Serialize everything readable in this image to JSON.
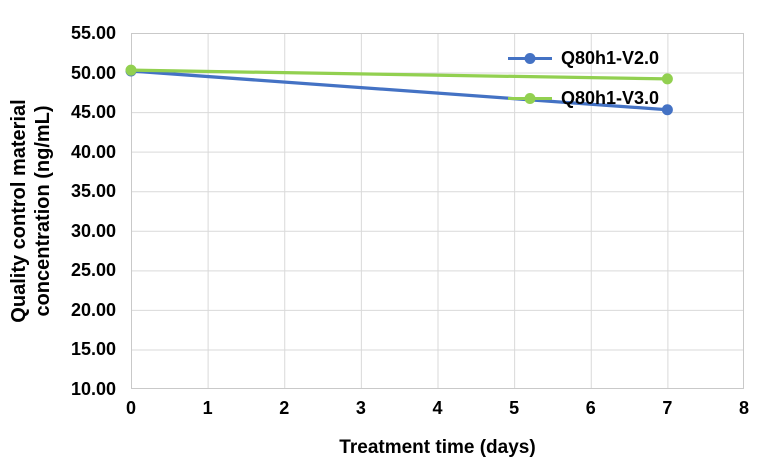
{
  "chart_data": {
    "type": "line",
    "title": "",
    "xlabel": "Treatment time (days)",
    "ylabel": "Quality control material concentration (ng/mL)",
    "ylabel_lines": [
      "Quality control material",
      "concentration (ng/mL)"
    ],
    "xlim": [
      0,
      8
    ],
    "ylim": [
      10,
      55
    ],
    "x_ticks": [
      0,
      1,
      2,
      3,
      4,
      5,
      6,
      7,
      8
    ],
    "y_ticks": [
      55,
      50,
      45,
      40,
      35,
      30,
      25,
      20,
      15,
      10
    ],
    "y_tick_labels": [
      "55.00",
      "50.00",
      "45.00",
      "40.00",
      "35.00",
      "30.00",
      "25.00",
      "20.00",
      "15.00",
      "10.00"
    ],
    "grid": true,
    "legend_position": "inside-top-right",
    "series": [
      {
        "name": "Q80h1-V2.0",
        "color": "#4472C4",
        "x": [
          0,
          7
        ],
        "values": [
          50.2,
          45.3
        ]
      },
      {
        "name": "Q80h1-V3.0",
        "color": "#92D050",
        "x": [
          0,
          7
        ],
        "values": [
          50.3,
          49.2
        ]
      }
    ],
    "colors": {
      "gridline": "#D9D9D9",
      "plot_border": "#C9C9C9",
      "text": "#000000"
    }
  }
}
